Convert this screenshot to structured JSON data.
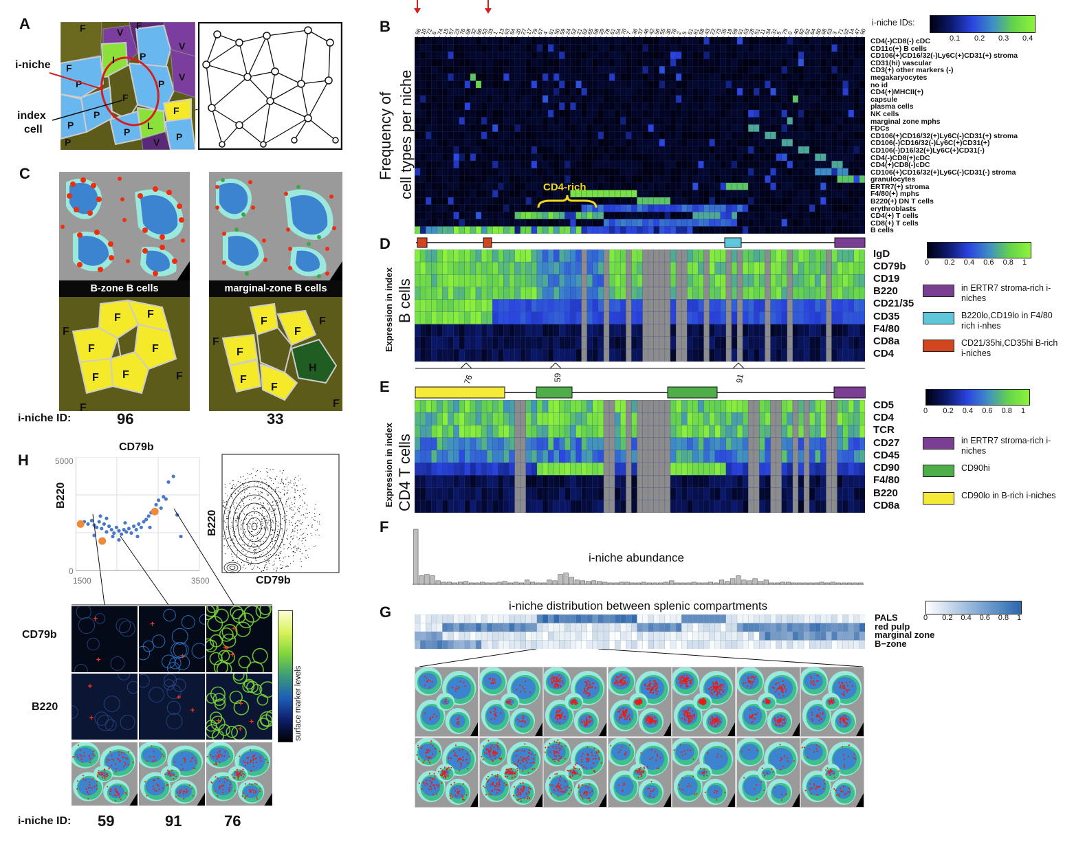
{
  "panels": {
    "A": {
      "letter": "A",
      "label_niche": "i-niche",
      "label_index": "index",
      "label_cell": "cell",
      "cells": [
        "F",
        "V",
        "P",
        "F",
        "V",
        "F",
        "I",
        "P",
        "P",
        "V",
        "F",
        "P",
        "F",
        "L",
        "P",
        "P",
        "P",
        "V",
        "P"
      ]
    },
    "B": {
      "letter": "B",
      "ylabel_line1": "Frequency of",
      "ylabel_line2": "cell types per niche",
      "legend_title": "i-niche IDs:",
      "colorbar_ticks": [
        "0.1",
        "0.2",
        "0.3",
        "0.4"
      ],
      "annotation": "CD4-rich",
      "niche_ids": [
        "96",
        "10",
        "72",
        "6",
        "74",
        "15",
        "57",
        "23",
        "76",
        "68",
        "32",
        "86",
        "53",
        "33",
        "1",
        "13",
        "93",
        "84",
        "20",
        "27",
        "17",
        "79",
        "67",
        "4",
        "81",
        "50",
        "59",
        "24",
        "52",
        "21",
        "82",
        "65",
        "88",
        "29",
        "78",
        "61",
        "54",
        "70",
        "7",
        "36",
        "37",
        "46",
        "42",
        "56",
        "55",
        "30",
        "76",
        "2",
        "5",
        "61",
        "81",
        "88",
        "43",
        "22",
        "73",
        "35",
        "19",
        "99",
        "91",
        "63",
        "28",
        "51",
        "11",
        "34",
        "31",
        "5",
        "75",
        "0",
        "40",
        "82",
        "62",
        "64",
        "80",
        "98",
        "63",
        "3",
        "71",
        "92",
        "14",
        "47",
        "90"
      ],
      "rows": [
        "CD4(-)CD8(-) cDC",
        "CD11c(+) B cells",
        "CD106(+)CD16/32(-)Ly6C(+)CD31(+) stroma",
        "CD31(hi) vascular",
        "CD3(+) other markers (-)",
        "megakaryocytes",
        "no id",
        "CD4(+)MHCII(+)",
        "capsule",
        "plasma cells",
        "NK cells",
        "marginal zone mphs",
        "FDCs",
        "CD106(+)CD16/32(+)Ly6C(-)CD31(+) stroma",
        "CD106(-)CD16/32(-)Ly6C(+)CD31(+)",
        "CD106(-)D16/32(+)Ly6C(+)CD31(-)",
        "CD4(-)CD8(+)cDC",
        "CD4(+)CD8(-)cDC",
        "CD106(+)CD16/32(+)Ly6C(-)CD31(-) stroma",
        "granulocytes",
        "ERTR7(+) stroma",
        "F4/80(+) mphs",
        "B220(+) DN T cells",
        "erythroblasts",
        "CD4(+) T cells",
        "CD8(+) T cells",
        "B cells"
      ]
    },
    "C": {
      "letter": "C",
      "label_left": "B-zone B cells",
      "label_right": "marginal-zone B cells",
      "id_label": "i-niche ID:",
      "id_left": "96",
      "id_right": "33",
      "cells_left": [
        "F",
        "F",
        "F",
        "F",
        "F",
        "F",
        "F",
        "F",
        "F"
      ],
      "cells_right": [
        "F",
        "F",
        "F",
        "F",
        "F",
        "F",
        "H",
        "F",
        "F"
      ]
    },
    "D": {
      "letter": "D",
      "ylabel_line1": "Expression in index",
      "ylabel_line2": "B cells",
      "rows": [
        "IgD",
        "CD79b",
        "CD19",
        "B220",
        "CD21/35",
        "CD35",
        "F4/80",
        "CD8a",
        "CD4"
      ],
      "colorbar_ticks": [
        "0",
        "0.2",
        "0.4",
        "0.6",
        "0.8",
        "1"
      ],
      "legend": [
        {
          "text": "in ERTR7 stroma-rich i-niches",
          "color": "#7a3e92"
        },
        {
          "text": "B220lo,CD19lo in F4/80 rich i-nhes",
          "color": "#5ec8da"
        },
        {
          "text": "CD21/35hi,CD35hi B-rich i-niches",
          "color": "#d2461f"
        }
      ],
      "markers": [
        "76",
        "59",
        "91"
      ]
    },
    "E": {
      "letter": "E",
      "ylabel_line1": "Expression in index",
      "ylabel_line2": "CD4 T cells",
      "rows": [
        "CD5",
        "CD4",
        "TCR",
        "CD27",
        "CD45",
        "CD90",
        "F4/80",
        "B220",
        "CD8a"
      ],
      "colorbar_ticks": [
        "0",
        "0.2",
        "0.4",
        "0.6",
        "0.8",
        "1"
      ],
      "legend": [
        {
          "text": "in ERTR7 stroma-rich i-niches",
          "color": "#7a3e92"
        },
        {
          "text": "CD90hi",
          "color": "#4fae4a"
        },
        {
          "text": "CD90lo in B-rich i-niches",
          "color": "#f5ea38"
        }
      ]
    },
    "F": {
      "letter": "F",
      "title": "i-niche abundance"
    },
    "G": {
      "letter": "G",
      "title": "i-niche distribution between splenic compartments",
      "rows": [
        "PALS",
        "red pulp",
        "marginal zone",
        "B−zone"
      ],
      "colorbar_ticks": [
        "0",
        "0.2",
        "0.4",
        "0.6",
        "0.8",
        "1"
      ]
    },
    "H": {
      "letter": "H",
      "scatter_title": "CD79b",
      "ylabel": "B220",
      "xlabel": "CD79b",
      "y_ticks": [
        "5000",
        "0"
      ],
      "x_ticks": [
        "1500",
        "3500"
      ],
      "density_ylabel": "B220",
      "density_xlabel": "CD79b",
      "row_labels": [
        "CD79b",
        "B220"
      ],
      "colorbar_label": "surface marker levels",
      "id_label": "i-niche ID:",
      "ids": [
        "59",
        "91",
        "76"
      ]
    }
  },
  "chart_data": [
    {
      "type": "heatmap",
      "panel": "B",
      "title": "",
      "xlabel": "i-niche IDs",
      "ylabel": "Frequency of cell types per niche",
      "clim": [
        0,
        0.45
      ]
    },
    {
      "type": "heatmap",
      "panel": "D",
      "title": "",
      "ylabel": "Expression in index B cells",
      "clim": [
        0,
        1.1
      ]
    },
    {
      "type": "heatmap",
      "panel": "E",
      "title": "",
      "ylabel": "Expression in index CD4 T cells",
      "clim": [
        0,
        1.1
      ]
    },
    {
      "type": "bar",
      "panel": "F",
      "title": "i-niche abundance",
      "values": [
        78,
        12,
        14,
        12,
        5,
        3,
        3,
        2,
        3,
        4,
        2,
        2,
        3,
        2,
        2,
        3,
        4,
        2,
        3,
        2,
        6,
        3,
        2,
        2,
        6,
        5,
        14,
        16,
        10,
        6,
        5,
        4,
        5,
        4,
        3,
        2,
        2,
        3,
        3,
        2,
        2,
        3,
        2,
        2,
        2,
        3,
        5,
        2,
        2,
        2,
        3,
        2,
        2,
        3,
        2,
        6,
        4,
        8,
        12,
        6,
        5,
        8,
        4,
        6,
        2,
        2,
        3,
        3,
        2,
        2,
        2,
        2,
        2,
        3,
        2,
        3,
        2,
        2,
        2,
        2,
        2
      ]
    },
    {
      "type": "heatmap",
      "panel": "G",
      "title": "i-niche distribution between splenic compartments",
      "clim": [
        0,
        1
      ]
    },
    {
      "type": "scatter",
      "panel": "H",
      "title": "CD79b",
      "xlabel": "",
      "ylabel": "B220",
      "xlim": [
        1500,
        3500
      ],
      "ylim": [
        0,
        5000
      ],
      "points": [
        [
          1640,
          2150
        ],
        [
          1700,
          2050
        ],
        [
          1760,
          2200
        ],
        [
          1800,
          2000
        ],
        [
          1840,
          1900
        ],
        [
          1880,
          2150
        ],
        [
          1920,
          1850
        ],
        [
          1960,
          2050
        ],
        [
          2000,
          1700
        ],
        [
          2040,
          1950
        ],
        [
          2080,
          1800
        ],
        [
          2120,
          1650
        ],
        [
          2160,
          1900
        ],
        [
          2200,
          1750
        ],
        [
          2240,
          1600
        ],
        [
          2280,
          1800
        ],
        [
          2320,
          1700
        ],
        [
          2360,
          1850
        ],
        [
          2400,
          1650
        ],
        [
          2440,
          1950
        ],
        [
          2480,
          1800
        ],
        [
          2520,
          2050
        ],
        [
          2560,
          1900
        ],
        [
          2600,
          2150
        ],
        [
          2640,
          2250
        ],
        [
          2680,
          2400
        ],
        [
          2720,
          2550
        ],
        [
          2760,
          2650
        ],
        [
          2800,
          2900
        ],
        [
          2840,
          3100
        ],
        [
          2880,
          2750
        ],
        [
          2920,
          3250
        ],
        [
          2960,
          3150
        ],
        [
          3000,
          3900
        ],
        [
          3080,
          4150
        ],
        [
          3140,
          2450
        ],
        [
          3200,
          1500
        ],
        [
          2200,
          1350
        ],
        [
          2100,
          1500
        ],
        [
          2000,
          2300
        ],
        [
          1900,
          2400
        ],
        [
          1800,
          1550
        ],
        [
          2300,
          2100
        ],
        [
          2500,
          1500
        ],
        [
          2700,
          1900
        ]
      ],
      "highlighted": [
        [
          1580,
          2050
        ],
        [
          1930,
          1300
        ],
        [
          2780,
          2600
        ]
      ]
    }
  ]
}
